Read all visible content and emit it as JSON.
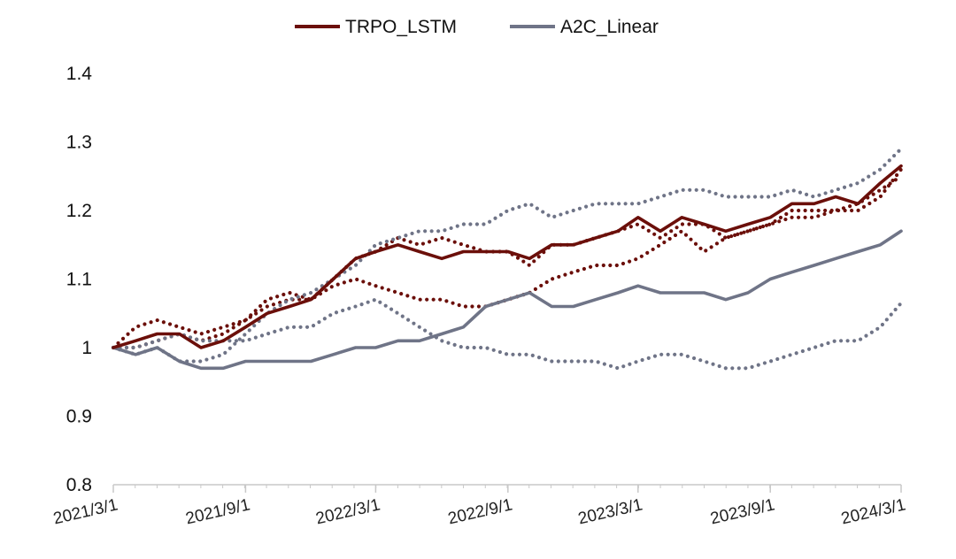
{
  "colors": {
    "TRPO_LSTM": "#6b0f0a",
    "A2C_Linear": "#6f7487",
    "axis": "#c8c8c8"
  },
  "chart_data": {
    "type": "line",
    "title": "",
    "xlabel": "",
    "ylabel": "",
    "ylim": [
      0.8,
      1.4
    ],
    "xlim": [
      "2021/3/1",
      "2024/3/1"
    ],
    "yticks": [
      "0.8",
      "0.9",
      "1",
      "1.1",
      "1.2",
      "1.3",
      "1.4"
    ],
    "xticks": [
      "2021/3/1",
      "2021/9/1",
      "2022/3/1",
      "2022/9/1",
      "2023/3/1",
      "2023/9/1",
      "2024/3/1"
    ],
    "grid": false,
    "legend": {
      "position": "top-center",
      "entries": [
        "TRPO_LSTM",
        "A2C_Linear"
      ]
    },
    "series": [
      {
        "name": "TRPO_LSTM",
        "style": "solid",
        "color": "#6b0f0a",
        "points": [
          [
            "2021/3/1",
            1.0
          ],
          [
            "2021/4/1",
            1.01
          ],
          [
            "2021/5/1",
            1.02
          ],
          [
            "2021/6/1",
            1.02
          ],
          [
            "2021/7/1",
            1.0
          ],
          [
            "2021/8/1",
            1.01
          ],
          [
            "2021/9/1",
            1.03
          ],
          [
            "2021/10/1",
            1.05
          ],
          [
            "2021/11/1",
            1.06
          ],
          [
            "2021/12/1",
            1.07
          ],
          [
            "2022/1/1",
            1.1
          ],
          [
            "2022/2/1",
            1.13
          ],
          [
            "2022/3/1",
            1.14
          ],
          [
            "2022/4/1",
            1.15
          ],
          [
            "2022/5/1",
            1.14
          ],
          [
            "2022/6/1",
            1.13
          ],
          [
            "2022/7/1",
            1.14
          ],
          [
            "2022/8/1",
            1.14
          ],
          [
            "2022/9/1",
            1.14
          ],
          [
            "2022/10/1",
            1.13
          ],
          [
            "2022/11/1",
            1.15
          ],
          [
            "2022/12/1",
            1.15
          ],
          [
            "2023/1/1",
            1.16
          ],
          [
            "2023/2/1",
            1.17
          ],
          [
            "2023/3/1",
            1.19
          ],
          [
            "2023/4/1",
            1.17
          ],
          [
            "2023/5/1",
            1.19
          ],
          [
            "2023/6/1",
            1.18
          ],
          [
            "2023/7/1",
            1.17
          ],
          [
            "2023/8/1",
            1.18
          ],
          [
            "2023/9/1",
            1.19
          ],
          [
            "2023/10/1",
            1.21
          ],
          [
            "2023/11/1",
            1.21
          ],
          [
            "2023/12/1",
            1.22
          ],
          [
            "2024/1/1",
            1.21
          ],
          [
            "2024/2/1",
            1.24
          ],
          [
            "2024/3/1",
            1.265
          ]
        ]
      },
      {
        "name": "A2C_Linear",
        "style": "solid",
        "color": "#6f7487",
        "points": [
          [
            "2021/3/1",
            1.0
          ],
          [
            "2021/4/1",
            0.99
          ],
          [
            "2021/5/1",
            1.0
          ],
          [
            "2021/6/1",
            0.98
          ],
          [
            "2021/7/1",
            0.97
          ],
          [
            "2021/8/1",
            0.97
          ],
          [
            "2021/9/1",
            0.98
          ],
          [
            "2021/10/1",
            0.98
          ],
          [
            "2021/11/1",
            0.98
          ],
          [
            "2021/12/1",
            0.98
          ],
          [
            "2022/1/1",
            0.99
          ],
          [
            "2022/2/1",
            1.0
          ],
          [
            "2022/3/1",
            1.0
          ],
          [
            "2022/4/1",
            1.01
          ],
          [
            "2022/5/1",
            1.01
          ],
          [
            "2022/6/1",
            1.02
          ],
          [
            "2022/7/1",
            1.03
          ],
          [
            "2022/8/1",
            1.06
          ],
          [
            "2022/9/1",
            1.07
          ],
          [
            "2022/10/1",
            1.08
          ],
          [
            "2022/11/1",
            1.06
          ],
          [
            "2022/12/1",
            1.06
          ],
          [
            "2023/1/1",
            1.07
          ],
          [
            "2023/2/1",
            1.08
          ],
          [
            "2023/3/1",
            1.09
          ],
          [
            "2023/4/1",
            1.08
          ],
          [
            "2023/5/1",
            1.08
          ],
          [
            "2023/6/1",
            1.08
          ],
          [
            "2023/7/1",
            1.07
          ],
          [
            "2023/8/1",
            1.08
          ],
          [
            "2023/9/1",
            1.1
          ],
          [
            "2023/10/1",
            1.11
          ],
          [
            "2023/11/1",
            1.12
          ],
          [
            "2023/12/1",
            1.13
          ],
          [
            "2024/1/1",
            1.14
          ],
          [
            "2024/2/1",
            1.15
          ],
          [
            "2024/3/1",
            1.17
          ]
        ]
      },
      {
        "style": "dotted",
        "color": "#6b0f0a",
        "points": [
          [
            "2021/3/1",
            1.0
          ],
          [
            "2021/4/1",
            1.03
          ],
          [
            "2021/5/1",
            1.04
          ],
          [
            "2021/6/1",
            1.03
          ],
          [
            "2021/7/1",
            1.02
          ],
          [
            "2021/8/1",
            1.03
          ],
          [
            "2021/9/1",
            1.04
          ],
          [
            "2021/10/1",
            1.07
          ],
          [
            "2021/11/1",
            1.08
          ],
          [
            "2021/12/1",
            1.07
          ],
          [
            "2022/1/1",
            1.09
          ],
          [
            "2022/2/1",
            1.1
          ],
          [
            "2022/3/1",
            1.09
          ],
          [
            "2022/4/1",
            1.08
          ],
          [
            "2022/5/1",
            1.07
          ],
          [
            "2022/6/1",
            1.07
          ],
          [
            "2022/7/1",
            1.06
          ],
          [
            "2022/8/1",
            1.06
          ],
          [
            "2022/9/1",
            1.07
          ],
          [
            "2022/10/1",
            1.08
          ],
          [
            "2022/11/1",
            1.1
          ],
          [
            "2022/12/1",
            1.11
          ],
          [
            "2023/1/1",
            1.12
          ],
          [
            "2023/2/1",
            1.12
          ],
          [
            "2023/3/1",
            1.13
          ],
          [
            "2023/4/1",
            1.15
          ],
          [
            "2023/5/1",
            1.17
          ],
          [
            "2023/6/1",
            1.14
          ],
          [
            "2023/7/1",
            1.16
          ],
          [
            "2023/8/1",
            1.17
          ],
          [
            "2023/9/1",
            1.18
          ],
          [
            "2023/10/1",
            1.19
          ],
          [
            "2023/11/1",
            1.19
          ],
          [
            "2023/12/1",
            1.2
          ],
          [
            "2024/1/1",
            1.21
          ],
          [
            "2024/2/1",
            1.23
          ],
          [
            "2024/3/1",
            1.25
          ]
        ]
      },
      {
        "style": "dotted",
        "color": "#6b0f0a",
        "points": [
          [
            "2021/3/1",
            1.0
          ],
          [
            "2021/4/1",
            1.0
          ],
          [
            "2021/5/1",
            1.01
          ],
          [
            "2021/6/1",
            1.02
          ],
          [
            "2021/7/1",
            1.01
          ],
          [
            "2021/8/1",
            1.02
          ],
          [
            "2021/9/1",
            1.04
          ],
          [
            "2021/10/1",
            1.06
          ],
          [
            "2021/11/1",
            1.07
          ],
          [
            "2021/12/1",
            1.07
          ],
          [
            "2022/1/1",
            1.1
          ],
          [
            "2022/2/1",
            1.13
          ],
          [
            "2022/3/1",
            1.14
          ],
          [
            "2022/4/1",
            1.16
          ],
          [
            "2022/5/1",
            1.15
          ],
          [
            "2022/6/1",
            1.16
          ],
          [
            "2022/7/1",
            1.15
          ],
          [
            "2022/8/1",
            1.14
          ],
          [
            "2022/9/1",
            1.14
          ],
          [
            "2022/10/1",
            1.12
          ],
          [
            "2022/11/1",
            1.15
          ],
          [
            "2022/12/1",
            1.15
          ],
          [
            "2023/1/1",
            1.16
          ],
          [
            "2023/2/1",
            1.17
          ],
          [
            "2023/3/1",
            1.18
          ],
          [
            "2023/4/1",
            1.16
          ],
          [
            "2023/5/1",
            1.18
          ],
          [
            "2023/6/1",
            1.18
          ],
          [
            "2023/7/1",
            1.16
          ],
          [
            "2023/8/1",
            1.17
          ],
          [
            "2023/9/1",
            1.18
          ],
          [
            "2023/10/1",
            1.2
          ],
          [
            "2023/11/1",
            1.2
          ],
          [
            "2023/12/1",
            1.2
          ],
          [
            "2024/1/1",
            1.2
          ],
          [
            "2024/2/1",
            1.22
          ],
          [
            "2024/3/1",
            1.26
          ]
        ]
      },
      {
        "style": "dotted",
        "color": "#6f7487",
        "points": [
          [
            "2021/3/1",
            1.0
          ],
          [
            "2021/4/1",
            0.99
          ],
          [
            "2021/5/1",
            1.0
          ],
          [
            "2021/6/1",
            0.98
          ],
          [
            "2021/7/1",
            0.98
          ],
          [
            "2021/8/1",
            0.99
          ],
          [
            "2021/9/1",
            1.02
          ],
          [
            "2021/10/1",
            1.05
          ],
          [
            "2021/11/1",
            1.07
          ],
          [
            "2021/12/1",
            1.08
          ],
          [
            "2022/1/1",
            1.1
          ],
          [
            "2022/2/1",
            1.12
          ],
          [
            "2022/3/1",
            1.15
          ],
          [
            "2022/4/1",
            1.16
          ],
          [
            "2022/5/1",
            1.17
          ],
          [
            "2022/6/1",
            1.17
          ],
          [
            "2022/7/1",
            1.18
          ],
          [
            "2022/8/1",
            1.18
          ],
          [
            "2022/9/1",
            1.2
          ],
          [
            "2022/10/1",
            1.21
          ],
          [
            "2022/11/1",
            1.19
          ],
          [
            "2022/12/1",
            1.2
          ],
          [
            "2023/1/1",
            1.21
          ],
          [
            "2023/2/1",
            1.21
          ],
          [
            "2023/3/1",
            1.21
          ],
          [
            "2023/4/1",
            1.22
          ],
          [
            "2023/5/1",
            1.23
          ],
          [
            "2023/6/1",
            1.23
          ],
          [
            "2023/7/1",
            1.22
          ],
          [
            "2023/8/1",
            1.22
          ],
          [
            "2023/9/1",
            1.22
          ],
          [
            "2023/10/1",
            1.23
          ],
          [
            "2023/11/1",
            1.22
          ],
          [
            "2023/12/1",
            1.23
          ],
          [
            "2024/1/1",
            1.24
          ],
          [
            "2024/2/1",
            1.26
          ],
          [
            "2024/3/1",
            1.29
          ]
        ]
      },
      {
        "style": "dotted",
        "color": "#6f7487",
        "points": [
          [
            "2021/3/1",
            1.0
          ],
          [
            "2021/4/1",
            1.0
          ],
          [
            "2021/5/1",
            1.01
          ],
          [
            "2021/6/1",
            1.02
          ],
          [
            "2021/7/1",
            1.01
          ],
          [
            "2021/8/1",
            1.01
          ],
          [
            "2021/9/1",
            1.01
          ],
          [
            "2021/10/1",
            1.02
          ],
          [
            "2021/11/1",
            1.03
          ],
          [
            "2021/12/1",
            1.03
          ],
          [
            "2022/1/1",
            1.05
          ],
          [
            "2022/2/1",
            1.06
          ],
          [
            "2022/3/1",
            1.07
          ],
          [
            "2022/4/1",
            1.05
          ],
          [
            "2022/5/1",
            1.03
          ],
          [
            "2022/6/1",
            1.01
          ],
          [
            "2022/7/1",
            1.0
          ],
          [
            "2022/8/1",
            1.0
          ],
          [
            "2022/9/1",
            0.99
          ],
          [
            "2022/10/1",
            0.99
          ],
          [
            "2022/11/1",
            0.98
          ],
          [
            "2022/12/1",
            0.98
          ],
          [
            "2023/1/1",
            0.98
          ],
          [
            "2023/2/1",
            0.97
          ],
          [
            "2023/3/1",
            0.98
          ],
          [
            "2023/4/1",
            0.99
          ],
          [
            "2023/5/1",
            0.99
          ],
          [
            "2023/6/1",
            0.98
          ],
          [
            "2023/7/1",
            0.97
          ],
          [
            "2023/8/1",
            0.97
          ],
          [
            "2023/9/1",
            0.98
          ],
          [
            "2023/10/1",
            0.99
          ],
          [
            "2023/11/1",
            1.0
          ],
          [
            "2023/12/1",
            1.01
          ],
          [
            "2024/1/1",
            1.01
          ],
          [
            "2024/2/1",
            1.03
          ],
          [
            "2024/3/1",
            1.065
          ]
        ]
      }
    ]
  }
}
